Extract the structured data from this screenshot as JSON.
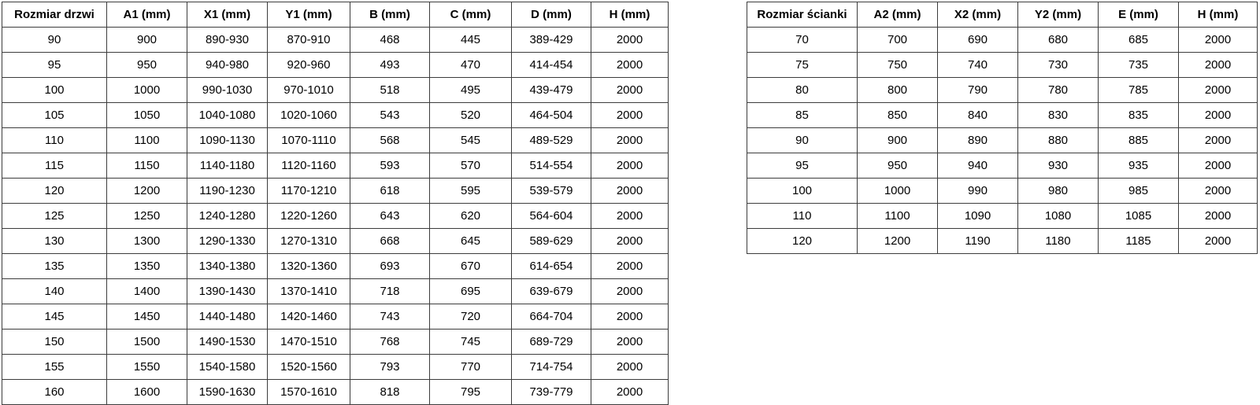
{
  "doors_table": {
    "name": "Rozmiar drzwi",
    "headers": [
      "Rozmiar drzwi",
      "A1 (mm)",
      "X1 (mm)",
      "Y1 (mm)",
      "B (mm)",
      "C (mm)",
      "D (mm)",
      "H (mm)"
    ],
    "rows": [
      [
        "90",
        "900",
        "890-930",
        "870-910",
        "468",
        "445",
        "389-429",
        "2000"
      ],
      [
        "95",
        "950",
        "940-980",
        "920-960",
        "493",
        "470",
        "414-454",
        "2000"
      ],
      [
        "100",
        "1000",
        "990-1030",
        "970-1010",
        "518",
        "495",
        "439-479",
        "2000"
      ],
      [
        "105",
        "1050",
        "1040-1080",
        "1020-1060",
        "543",
        "520",
        "464-504",
        "2000"
      ],
      [
        "110",
        "1100",
        "1090-1130",
        "1070-1110",
        "568",
        "545",
        "489-529",
        "2000"
      ],
      [
        "115",
        "1150",
        "1140-1180",
        "1120-1160",
        "593",
        "570",
        "514-554",
        "2000"
      ],
      [
        "120",
        "1200",
        "1190-1230",
        "1170-1210",
        "618",
        "595",
        "539-579",
        "2000"
      ],
      [
        "125",
        "1250",
        "1240-1280",
        "1220-1260",
        "643",
        "620",
        "564-604",
        "2000"
      ],
      [
        "130",
        "1300",
        "1290-1330",
        "1270-1310",
        "668",
        "645",
        "589-629",
        "2000"
      ],
      [
        "135",
        "1350",
        "1340-1380",
        "1320-1360",
        "693",
        "670",
        "614-654",
        "2000"
      ],
      [
        "140",
        "1400",
        "1390-1430",
        "1370-1410",
        "718",
        "695",
        "639-679",
        "2000"
      ],
      [
        "145",
        "1450",
        "1440-1480",
        "1420-1460",
        "743",
        "720",
        "664-704",
        "2000"
      ],
      [
        "150",
        "1500",
        "1490-1530",
        "1470-1510",
        "768",
        "745",
        "689-729",
        "2000"
      ],
      [
        "155",
        "1550",
        "1540-1580",
        "1520-1560",
        "793",
        "770",
        "714-754",
        "2000"
      ],
      [
        "160",
        "1600",
        "1590-1630",
        "1570-1610",
        "818",
        "795",
        "739-779",
        "2000"
      ]
    ]
  },
  "walls_table": {
    "name": "Rozmiar ścianki",
    "headers": [
      "Rozmiar ścianki",
      "A2 (mm)",
      "X2 (mm)",
      "Y2 (mm)",
      "E (mm)",
      "H (mm)"
    ],
    "rows": [
      [
        "70",
        "700",
        "690",
        "680",
        "685",
        "2000"
      ],
      [
        "75",
        "750",
        "740",
        "730",
        "735",
        "2000"
      ],
      [
        "80",
        "800",
        "790",
        "780",
        "785",
        "2000"
      ],
      [
        "85",
        "850",
        "840",
        "830",
        "835",
        "2000"
      ],
      [
        "90",
        "900",
        "890",
        "880",
        "885",
        "2000"
      ],
      [
        "95",
        "950",
        "940",
        "930",
        "935",
        "2000"
      ],
      [
        "100",
        "1000",
        "990",
        "980",
        "985",
        "2000"
      ],
      [
        "110",
        "1100",
        "1090",
        "1080",
        "1085",
        "2000"
      ],
      [
        "120",
        "1200",
        "1190",
        "1180",
        "1185",
        "2000"
      ]
    ]
  },
  "colors": {
    "border": "#3c3c3c",
    "text": "#000000",
    "background": "#ffffff"
  }
}
